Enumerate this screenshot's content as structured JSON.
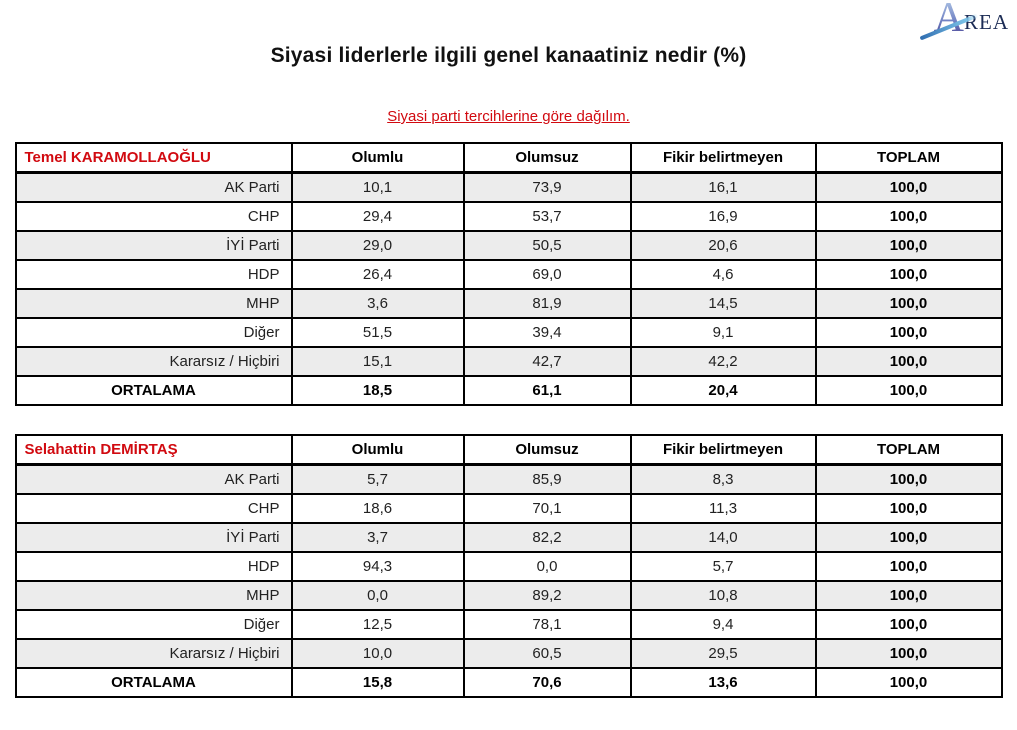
{
  "logo": {
    "letter_a": "A",
    "rest": "REA",
    "gradient_top": "#b9d2ec",
    "gradient_bottom": "#44398c",
    "text_color": "#1c2c55",
    "swoosh_color": "#7cc3e8"
  },
  "page": {
    "title": "Siyasi liderlerle ilgili genel kanaatiniz nedir (%)",
    "subtitle": "Siyasi parti tercihlerine göre dağılım."
  },
  "colors": {
    "accent_red": "#d10a10",
    "row_shade": "#ececec",
    "border": "#000000"
  },
  "tables": [
    {
      "leader": "Temel KARAMOLLAOĞLU",
      "columns": [
        "Olumlu",
        "Olumsuz",
        "Fikir belirtmeyen",
        "TOPLAM"
      ],
      "rows": [
        {
          "label": "AK Parti",
          "values": [
            "10,1",
            "73,9",
            "16,1",
            "100,0"
          ],
          "shaded": true,
          "is_total": false
        },
        {
          "label": "CHP",
          "values": [
            "29,4",
            "53,7",
            "16,9",
            "100,0"
          ],
          "shaded": false,
          "is_total": false
        },
        {
          "label": "İYİ Parti",
          "values": [
            "29,0",
            "50,5",
            "20,6",
            "100,0"
          ],
          "shaded": true,
          "is_total": false
        },
        {
          "label": "HDP",
          "values": [
            "26,4",
            "69,0",
            "4,6",
            "100,0"
          ],
          "shaded": false,
          "is_total": false
        },
        {
          "label": "MHP",
          "values": [
            "3,6",
            "81,9",
            "14,5",
            "100,0"
          ],
          "shaded": true,
          "is_total": false
        },
        {
          "label": "Diğer",
          "values": [
            "51,5",
            "39,4",
            "9,1",
            "100,0"
          ],
          "shaded": false,
          "is_total": false
        },
        {
          "label": "Kararsız / Hiçbiri",
          "values": [
            "15,1",
            "42,7",
            "42,2",
            "100,0"
          ],
          "shaded": true,
          "is_total": false
        },
        {
          "label": "ORTALAMA",
          "values": [
            "18,5",
            "61,1",
            "20,4",
            "100,0"
          ],
          "shaded": false,
          "is_total": true
        }
      ]
    },
    {
      "leader": "Selahattin DEMİRTAŞ",
      "columns": [
        "Olumlu",
        "Olumsuz",
        "Fikir belirtmeyen",
        "TOPLAM"
      ],
      "rows": [
        {
          "label": "AK Parti",
          "values": [
            "5,7",
            "85,9",
            "8,3",
            "100,0"
          ],
          "shaded": true,
          "is_total": false
        },
        {
          "label": "CHP",
          "values": [
            "18,6",
            "70,1",
            "11,3",
            "100,0"
          ],
          "shaded": false,
          "is_total": false
        },
        {
          "label": "İYİ Parti",
          "values": [
            "3,7",
            "82,2",
            "14,0",
            "100,0"
          ],
          "shaded": true,
          "is_total": false
        },
        {
          "label": "HDP",
          "values": [
            "94,3",
            "0,0",
            "5,7",
            "100,0"
          ],
          "shaded": false,
          "is_total": false
        },
        {
          "label": "MHP",
          "values": [
            "0,0",
            "89,2",
            "10,8",
            "100,0"
          ],
          "shaded": true,
          "is_total": false
        },
        {
          "label": "Diğer",
          "values": [
            "12,5",
            "78,1",
            "9,4",
            "100,0"
          ],
          "shaded": false,
          "is_total": false
        },
        {
          "label": "Kararsız / Hiçbiri",
          "values": [
            "10,0",
            "60,5",
            "29,5",
            "100,0"
          ],
          "shaded": true,
          "is_total": false
        },
        {
          "label": "ORTALAMA",
          "values": [
            "15,8",
            "70,6",
            "13,6",
            "100,0"
          ],
          "shaded": false,
          "is_total": true
        }
      ]
    }
  ]
}
